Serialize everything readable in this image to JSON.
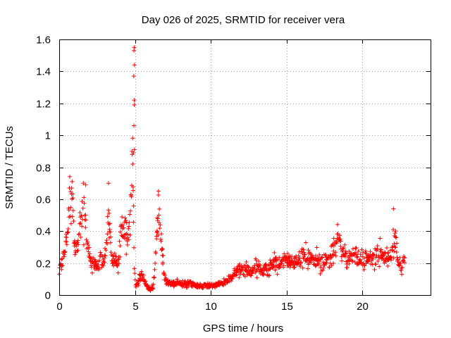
{
  "chart_data": {
    "type": "scatter",
    "title": "Day 026 of 2025, SRMTID for receiver vera",
    "xlabel": "GPS time / hours",
    "ylabel": "SRMTID / TECUs",
    "xlim": [
      0,
      24.5
    ],
    "ylim": [
      0,
      1.6
    ],
    "xticks": [
      0,
      5,
      10,
      15,
      20
    ],
    "yticks": [
      0,
      0.2,
      0.4,
      0.6,
      0.8,
      1,
      1.2,
      1.4,
      1.6
    ],
    "xtick_labels": [
      "0",
      "5",
      "10",
      "15",
      "20"
    ],
    "ytick_labels": [
      "0",
      "0.2",
      "0.4",
      "0.6",
      "0.8",
      "1",
      "1.2",
      "1.4",
      "1.6"
    ],
    "grid": true,
    "marker": "+",
    "color": "#ff0000",
    "series": [
      {
        "name": "SRMTID",
        "profile": {
          "x": [
            0.0,
            0.1,
            0.3,
            0.5,
            0.7,
            0.85,
            1.0,
            1.2,
            1.4,
            1.6,
            1.75,
            1.9,
            2.1,
            2.3,
            2.5,
            2.7,
            2.9,
            3.1,
            3.3,
            3.5,
            3.7,
            3.9,
            4.1,
            4.3,
            4.5,
            4.7,
            4.85,
            4.95,
            5.05,
            5.2,
            5.4,
            5.6,
            5.8,
            6.0,
            6.2,
            6.4,
            6.55,
            6.7,
            6.9,
            7.1,
            7.4,
            7.8,
            8.2,
            8.6,
            9.0,
            9.4,
            9.8,
            10.2,
            10.6,
            11.0,
            11.4,
            11.8,
            12.2,
            12.6,
            13.0,
            13.4,
            13.8,
            14.2,
            14.6,
            15.0,
            15.4,
            15.8,
            16.2,
            16.6,
            17.0,
            17.4,
            17.8,
            18.2,
            18.4,
            18.6,
            19.0,
            19.4,
            19.8,
            20.2,
            20.6,
            21.0,
            21.4,
            21.8,
            22.0,
            22.2,
            22.4,
            22.6,
            22.8
          ],
          "y": [
            0.15,
            0.18,
            0.25,
            0.35,
            0.55,
            0.65,
            0.3,
            0.3,
            0.45,
            0.55,
            0.45,
            0.3,
            0.22,
            0.18,
            0.2,
            0.25,
            0.18,
            0.35,
            0.45,
            0.2,
            0.22,
            0.18,
            0.45,
            0.4,
            0.35,
            0.5,
            0.85,
            0.15,
            0.05,
            0.08,
            0.12,
            0.1,
            0.05,
            0.03,
            0.05,
            0.3,
            0.6,
            0.35,
            0.15,
            0.08,
            0.07,
            0.08,
            0.07,
            0.07,
            0.06,
            0.06,
            0.06,
            0.06,
            0.07,
            0.08,
            0.12,
            0.16,
            0.16,
            0.14,
            0.18,
            0.15,
            0.17,
            0.2,
            0.2,
            0.22,
            0.2,
            0.22,
            0.25,
            0.22,
            0.22,
            0.2,
            0.22,
            0.28,
            0.38,
            0.28,
            0.22,
            0.25,
            0.22,
            0.24,
            0.22,
            0.26,
            0.25,
            0.22,
            0.3,
            0.35,
            0.2,
            0.15,
            0.28
          ]
        },
        "spikes": [
          {
            "x": 4.95,
            "y": 1.55
          },
          {
            "x": 4.93,
            "y": 1.53
          },
          {
            "x": 4.97,
            "y": 1.44
          },
          {
            "x": 4.92,
            "y": 1.37
          },
          {
            "x": 4.95,
            "y": 1.22
          },
          {
            "x": 4.96,
            "y": 1.19
          },
          {
            "x": 4.93,
            "y": 1.06
          },
          {
            "x": 4.97,
            "y": 0.91
          },
          {
            "x": 4.9,
            "y": 0.89
          },
          {
            "x": 4.85,
            "y": 0.82
          },
          {
            "x": 4.8,
            "y": 0.9
          },
          {
            "x": 3.25,
            "y": 0.7
          },
          {
            "x": 0.85,
            "y": 0.71
          },
          {
            "x": 1.75,
            "y": 0.69
          },
          {
            "x": 6.55,
            "y": 0.65
          },
          {
            "x": 22.05,
            "y": 0.54
          }
        ]
      }
    ]
  }
}
